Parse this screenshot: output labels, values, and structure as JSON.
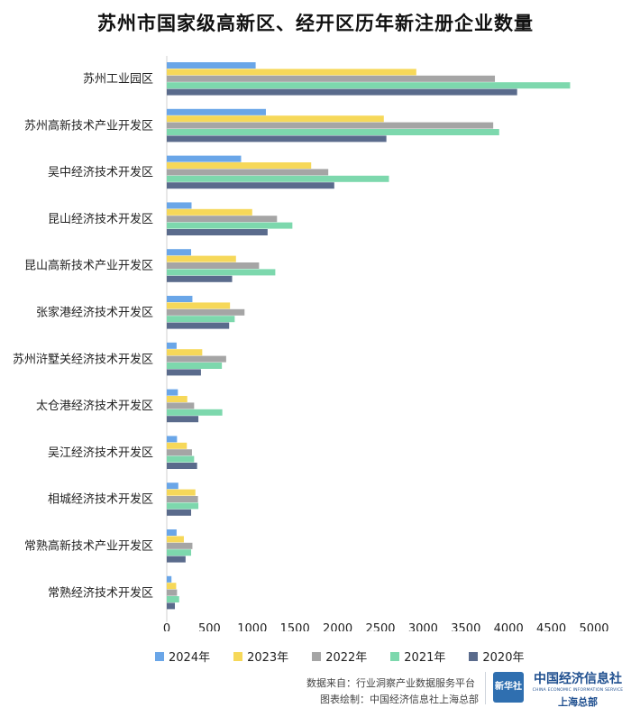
{
  "title": "苏州市国家级高新区、经开区历年新注册企业数量",
  "chart_data": {
    "type": "bar",
    "orientation": "horizontal",
    "title": "苏州市国家级高新区、经开区历年新注册企业数量",
    "categories": [
      "苏州工业园区",
      "苏州高新技术产业开发区",
      "吴中经济技术开发区",
      "昆山经济技术开发区",
      "昆山高新技术产业开发区",
      "张家港经济技术开发区",
      "苏州浒墅关经济技术开发区",
      "太仓港经济技术开发区",
      "吴江经济技术开发区",
      "相城经济技术开发区",
      "常熟高新技术产业开发区",
      "常熟经济技术开发区"
    ],
    "series": [
      {
        "name": "2024年",
        "color": "#6aa6e8",
        "values": [
          1040,
          1160,
          870,
          290,
          285,
          300,
          115,
          130,
          120,
          135,
          115,
          55
        ]
      },
      {
        "name": "2023年",
        "color": "#f6d859",
        "values": [
          2920,
          2540,
          1690,
          1000,
          810,
          740,
          415,
          240,
          235,
          335,
          200,
          110
        ]
      },
      {
        "name": "2022年",
        "color": "#a5a5a5",
        "values": [
          3840,
          3820,
          1890,
          1290,
          1080,
          910,
          695,
          320,
          295,
          365,
          300,
          120
        ]
      },
      {
        "name": "2021年",
        "color": "#7dd8ad",
        "values": [
          4720,
          3890,
          2600,
          1470,
          1270,
          795,
          645,
          650,
          320,
          370,
          285,
          145
        ]
      },
      {
        "name": "2020年",
        "color": "#5a6b8c",
        "values": [
          4100,
          2570,
          1960,
          1180,
          765,
          730,
          400,
          370,
          355,
          285,
          220,
          95
        ]
      }
    ],
    "xlim": [
      0,
      5000
    ],
    "xticks": [
      0,
      500,
      1000,
      1500,
      2000,
      2500,
      3000,
      3500,
      4000,
      4500,
      5000
    ],
    "grid": false,
    "legend_position": "bottom"
  },
  "footer": {
    "source": "数据来自：行业洞察产业数据服务平台",
    "made_by": "图表绘制：中国经济信息社上海总部"
  },
  "logos": {
    "xinhua": "新华社",
    "ceis_name": "中国经济信息社",
    "ceis_en": "CHINA ECONOMIC INFORMATION SERVICE",
    "ceis_sub": "上海总部"
  }
}
